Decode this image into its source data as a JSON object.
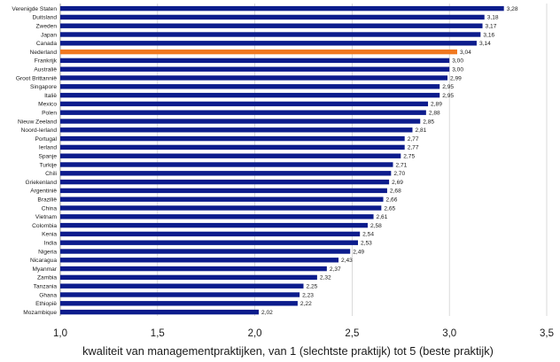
{
  "chart_data": {
    "type": "bar",
    "orientation": "horizontal",
    "categories": [
      "Verenigde Staten",
      "Duitsland",
      "Zweden",
      "Japan",
      "Canada",
      "Nederland",
      "Frankrijk",
      "Australië",
      "Groot Brittannië",
      "Singapore",
      "Italië",
      "Mexico",
      "Polen",
      "Nieuw Zeeland",
      "Noord-Ierland",
      "Portugal",
      "Ierland",
      "Spanje",
      "Turkije",
      "Chili",
      "Griekenland",
      "Argentinië",
      "Brazilië",
      "China",
      "Vietnam",
      "Colombia",
      "Kenia",
      "India",
      "Nigeria",
      "Nicaragua",
      "Myanmar",
      "Zambia",
      "Tanzania",
      "Ghana",
      "Ethiopië",
      "Mozambique"
    ],
    "values": [
      3.28,
      3.18,
      3.17,
      3.16,
      3.14,
      3.04,
      3.0,
      3.0,
      2.99,
      2.95,
      2.95,
      2.89,
      2.88,
      2.85,
      2.81,
      2.77,
      2.77,
      2.75,
      2.71,
      2.7,
      2.69,
      2.68,
      2.66,
      2.65,
      2.61,
      2.58,
      2.54,
      2.53,
      2.49,
      2.43,
      2.37,
      2.32,
      2.25,
      2.23,
      2.22,
      2.02
    ],
    "value_labels": [
      "3,28",
      "3,18",
      "3,17",
      "3,16",
      "3,14",
      "3,04",
      "3,00",
      "3,00",
      "2,99",
      "2,95",
      "2,95",
      "2,89",
      "2,88",
      "2,85",
      "2,81",
      "2,77",
      "2,77",
      "2,75",
      "2,71",
      "2,70",
      "2,69",
      "2,68",
      "2,66",
      "2,65",
      "2,61",
      "2,58",
      "2,54",
      "2,53",
      "2,49",
      "2,43",
      "2,37",
      "2,32",
      "2,25",
      "2,23",
      "2,22",
      "2,02"
    ],
    "highlight": "Nederland",
    "xlim": [
      1.0,
      3.5
    ],
    "xticks": [
      1.0,
      1.5,
      2.0,
      2.5,
      3.0,
      3.5
    ],
    "xtick_labels": [
      "1,0",
      "1,5",
      "2,0",
      "2,5",
      "3,0",
      "3,5"
    ],
    "xlabel": "kwaliteit van managementpraktijken, van 1 (slechtste praktijk) tot 5 (beste praktijk)",
    "grid": "vertical",
    "legend": "none",
    "colors": {
      "bar": "#0c1c8c",
      "highlight": "#f07820"
    }
  }
}
